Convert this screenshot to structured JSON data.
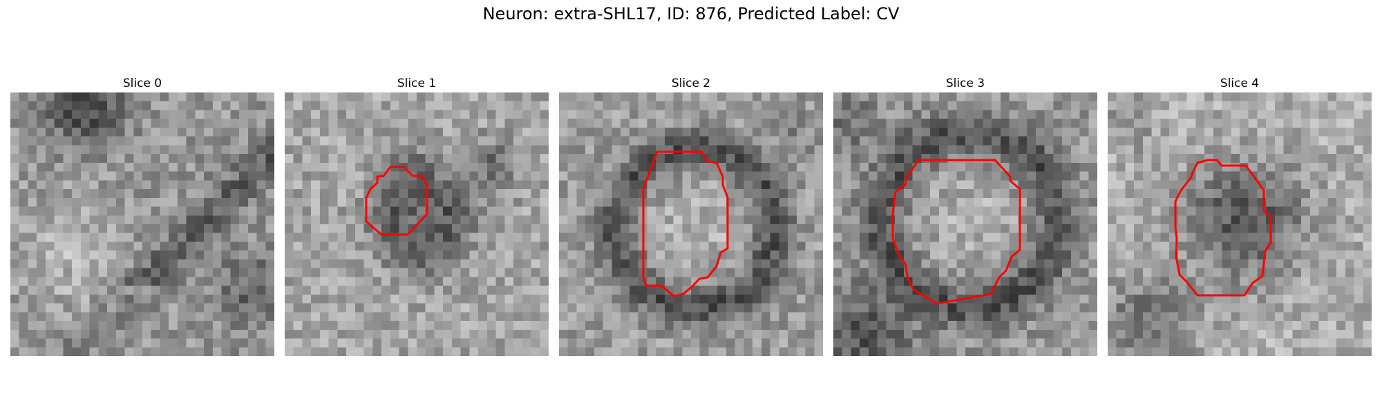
{
  "figure": {
    "title": "Neuron: extra-SHL17, ID: 876, Predicted Label: CV",
    "contour_color": "#ff0000"
  },
  "slices": [
    {
      "title": "Slice 0",
      "has_contour": false
    },
    {
      "title": "Slice 1",
      "has_contour": true
    },
    {
      "title": "Slice 2",
      "has_contour": true
    },
    {
      "title": "Slice 3",
      "has_contour": true
    },
    {
      "title": "Slice 4",
      "has_contour": true
    }
  ]
}
